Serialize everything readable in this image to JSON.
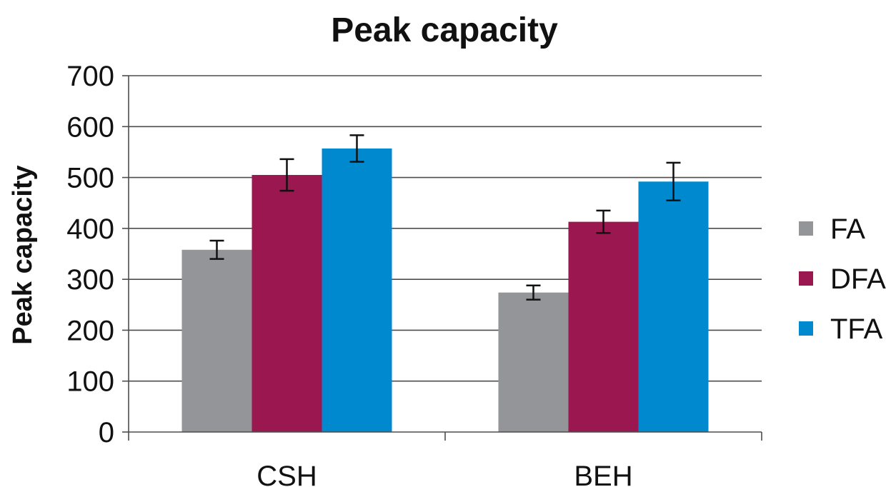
{
  "chart_data": {
    "type": "bar",
    "title": "Peak capacity",
    "xlabel": "",
    "ylabel": "Peak capacity",
    "ylim": [
      0,
      700
    ],
    "yticks": [
      "0",
      "100",
      "200",
      "300",
      "400",
      "500",
      "600",
      "700"
    ],
    "categories": [
      "CSH",
      "BEH"
    ],
    "grid": true,
    "legend_position": "right",
    "series": [
      {
        "name": "FA",
        "color": "#939598",
        "values": [
          358,
          274
        ],
        "errors": [
          18,
          14
        ]
      },
      {
        "name": "DFA",
        "color": "#9b1750",
        "values": [
          505,
          413
        ],
        "errors": [
          31,
          22
        ]
      },
      {
        "name": "TFA",
        "color": "#0089cf",
        "values": [
          557,
          492
        ],
        "errors": [
          26,
          37
        ]
      }
    ]
  }
}
